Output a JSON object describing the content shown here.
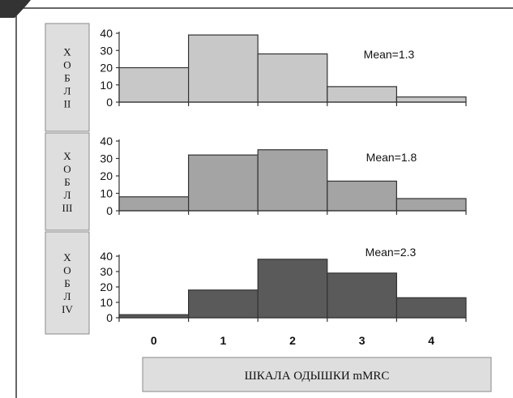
{
  "chart_data": [
    {
      "type": "bar",
      "group_label": [
        "Х",
        "О",
        "Б",
        "Л",
        "II"
      ],
      "annotation": "Mean=1.3",
      "categories": [
        "0",
        "1",
        "2",
        "3",
        "4"
      ],
      "values": [
        20,
        39,
        28,
        9,
        3
      ],
      "ylim": [
        0,
        40
      ],
      "yticks": [
        "0",
        "10",
        "20",
        "30",
        "40"
      ],
      "color": "#c8c8c8"
    },
    {
      "type": "bar",
      "group_label": [
        "Х",
        "О",
        "Б",
        "Л",
        "III"
      ],
      "annotation": "Mean=1.8",
      "categories": [
        "0",
        "1",
        "2",
        "3",
        "4"
      ],
      "values": [
        8,
        32,
        35,
        17,
        7
      ],
      "ylim": [
        0,
        40
      ],
      "yticks": [
        "0",
        "10",
        "20",
        "30",
        "40"
      ],
      "color": "#a4a4a4"
    },
    {
      "type": "bar",
      "group_label": [
        "Х",
        "О",
        "Б",
        "Л",
        "IV"
      ],
      "annotation": "Mean=2.3",
      "categories": [
        "0",
        "1",
        "2",
        "3",
        "4"
      ],
      "values": [
        2,
        18,
        38,
        29,
        13
      ],
      "ylim": [
        0,
        40
      ],
      "yticks": [
        "0",
        "10",
        "20",
        "30",
        "40"
      ],
      "color": "#5a5a5a"
    }
  ],
  "x_tick_labels": [
    "0",
    "1",
    "2",
    "3",
    "4"
  ],
  "xlabel": "ШКАЛА ОДЫШКИ mMRC",
  "colors": {
    "label_box": "#dedede",
    "label_box_border": "#8a8a8a",
    "bar_border": "#333333",
    "axis": "#333333"
  }
}
